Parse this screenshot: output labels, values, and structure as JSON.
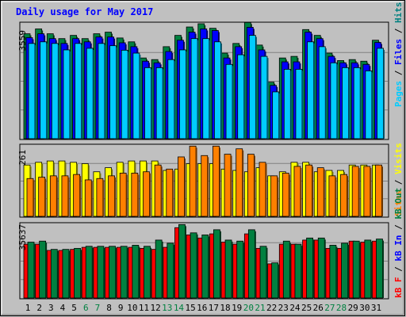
{
  "chart_data": [
    {
      "type": "bar",
      "title": "Daily usage for May 2017",
      "ymax_label": "3559",
      "ylim": [
        0,
        3559
      ],
      "y_axis_labels": [
        {
          "text": "Pages",
          "color": "#00ccff"
        },
        {
          "text": " / ",
          "color": "#000000"
        },
        {
          "text": "Files",
          "color": "#0000ff"
        },
        {
          "text": " / ",
          "color": "#000000"
        },
        {
          "text": "Hits",
          "color": "#008080"
        }
      ],
      "categories": [
        "1",
        "2",
        "3",
        "4",
        "5",
        "6",
        "7",
        "8",
        "9",
        "10",
        "11",
        "12",
        "13",
        "14",
        "15",
        "16",
        "17",
        "18",
        "19",
        "20",
        "21",
        "22",
        "23",
        "24",
        "25",
        "26",
        "27",
        "28",
        "29",
        "30",
        "31"
      ],
      "weekend_days": [
        "6",
        "7",
        "13",
        "14",
        "20",
        "21",
        "27",
        "28"
      ],
      "series": [
        {
          "name": "Hits",
          "color": "#008040",
          "values": [
            3250,
            3400,
            3250,
            3100,
            3200,
            3100,
            3250,
            3300,
            3120,
            3000,
            2500,
            2450,
            2850,
            3200,
            3460,
            3560,
            3420,
            2650,
            2950,
            3600,
            2900,
            1750,
            2500,
            2550,
            3380,
            3200,
            2650,
            2420,
            2450,
            2400,
            3050
          ]
        },
        {
          "name": "Files",
          "color": "#0000ff",
          "values": [
            3130,
            3250,
            3100,
            2950,
            3100,
            3000,
            3150,
            3150,
            2970,
            2850,
            2400,
            2350,
            2700,
            3050,
            3300,
            3400,
            3350,
            2500,
            2850,
            3450,
            2750,
            1650,
            2380,
            2380,
            3300,
            3100,
            2550,
            2350,
            2350,
            2300,
            2980
          ]
        },
        {
          "name": "Pages",
          "color": "#00ccff",
          "values": [
            2950,
            3000,
            2950,
            2750,
            2950,
            2800,
            2950,
            2880,
            2740,
            2650,
            2200,
            2200,
            2450,
            2750,
            3100,
            3100,
            3000,
            2300,
            2600,
            3200,
            2550,
            1450,
            2150,
            2150,
            3000,
            2850,
            2350,
            2200,
            2200,
            2100,
            2800
          ]
        }
      ]
    },
    {
      "type": "bar",
      "ymax_label": "261",
      "ylim": [
        0,
        261
      ],
      "y_axis_labels": [
        {
          "text": "Sites",
          "color": "#ff8000"
        },
        {
          "text": " / ",
          "color": "#000000"
        },
        {
          "text": "Visits",
          "color": "#ffff00"
        }
      ],
      "categories": [
        "1",
        "2",
        "3",
        "4",
        "5",
        "6",
        "7",
        "8",
        "9",
        "10",
        "11",
        "12",
        "13",
        "14",
        "15",
        "16",
        "17",
        "18",
        "19",
        "20",
        "21",
        "22",
        "23",
        "24",
        "25",
        "26",
        "27",
        "28",
        "29",
        "30",
        "31"
      ],
      "series": [
        {
          "name": "Visits",
          "color": "#ffff00",
          "values": [
            190,
            200,
            205,
            205,
            200,
            195,
            165,
            180,
            200,
            205,
            205,
            205,
            170,
            175,
            195,
            195,
            195,
            175,
            170,
            165,
            180,
            150,
            165,
            200,
            200,
            165,
            170,
            170,
            190,
            190,
            190
          ]
        },
        {
          "name": "Sites",
          "color": "#ff8000",
          "values": [
            140,
            145,
            150,
            150,
            155,
            135,
            140,
            150,
            160,
            160,
            165,
            190,
            175,
            220,
            260,
            225,
            260,
            230,
            250,
            230,
            200,
            150,
            160,
            185,
            190,
            180,
            150,
            155,
            185,
            185,
            190
          ]
        }
      ]
    },
    {
      "type": "bar",
      "ymax_label": "35637",
      "ylim": [
        0,
        35637
      ],
      "y_axis_labels": [
        {
          "text": "kB F",
          "color": "#ff0000"
        },
        {
          "text": " / ",
          "color": "#000000"
        },
        {
          "text": "kB In",
          "color": "#0000ff"
        },
        {
          "text": " / ",
          "color": "#000000"
        },
        {
          "text": "kB Out",
          "color": "#008040"
        }
      ],
      "categories": [
        "1",
        "2",
        "3",
        "4",
        "5",
        "6",
        "7",
        "8",
        "9",
        "10",
        "11",
        "12",
        "13",
        "14",
        "15",
        "16",
        "17",
        "18",
        "19",
        "20",
        "21",
        "22",
        "23",
        "24",
        "25",
        "26",
        "27",
        "28",
        "29",
        "30",
        "31"
      ],
      "series": [
        {
          "name": "kB F",
          "color": "#ff0000",
          "values": [
            26000,
            26000,
            23000,
            23000,
            23500,
            24500,
            24500,
            24500,
            24500,
            24500,
            24000,
            23500,
            24500,
            34000,
            30500,
            29000,
            31000,
            27000,
            26000,
            31000,
            24000,
            16500,
            26000,
            26000,
            28000,
            28000,
            24000,
            24000,
            27500,
            27000,
            27500
          ]
        },
        {
          "name": "kB Out",
          "color": "#008040",
          "values": [
            27000,
            27500,
            23500,
            23500,
            24000,
            25000,
            25000,
            25000,
            25000,
            25500,
            25000,
            28000,
            26500,
            35500,
            31500,
            30500,
            33000,
            28000,
            27500,
            33000,
            25000,
            17000,
            27500,
            26000,
            29000,
            29000,
            25500,
            26500,
            27500,
            28000,
            28500
          ]
        }
      ]
    }
  ]
}
